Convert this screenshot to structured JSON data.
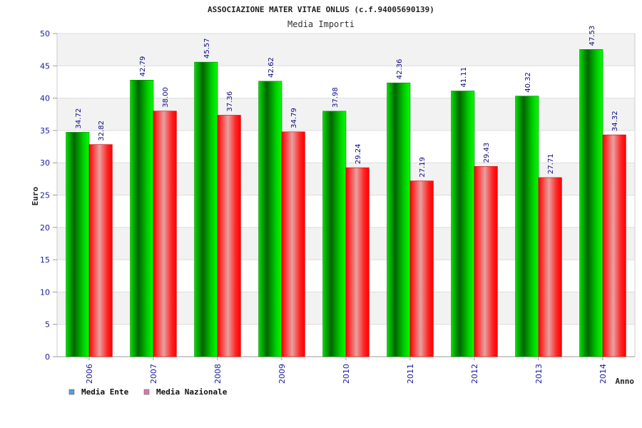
{
  "chart_data": {
    "type": "bar",
    "title": "ASSOCIAZIONE MATER VITAE ONLUS (c.f.94005690139)",
    "subtitle": "Media Importi",
    "xlabel": "Anno",
    "ylabel": "Euro",
    "ylim": [
      0,
      50
    ],
    "yticks": [
      "0",
      "5",
      "10",
      "15",
      "20",
      "25",
      "30",
      "35",
      "40",
      "45",
      "50"
    ],
    "grid": true,
    "legend_position": "bottom-left",
    "categories": [
      "2006",
      "2007",
      "2008",
      "2009",
      "2010",
      "2011",
      "2012",
      "2013",
      "2014"
    ],
    "series": [
      {
        "name": "Media Ente",
        "color": "#00c800",
        "legend_color": "#5b9bd5",
        "values": [
          34.72,
          42.79,
          45.57,
          42.62,
          37.98,
          42.36,
          41.11,
          40.32,
          47.53
        ],
        "labels": [
          "34.72",
          "42.79",
          "45.57",
          "42.62",
          "37.98",
          "42.36",
          "41.11",
          "40.32",
          "47.53"
        ]
      },
      {
        "name": "Media Nazionale",
        "color": "#ff0000",
        "legend_color": "#d87aa8",
        "values": [
          32.82,
          38.0,
          37.36,
          34.79,
          29.24,
          27.19,
          29.43,
          27.71,
          34.32
        ],
        "labels": [
          "32.82",
          "38.00",
          "37.36",
          "34.79",
          "29.24",
          "27.19",
          "29.43",
          "27.71",
          "34.32"
        ]
      }
    ]
  }
}
